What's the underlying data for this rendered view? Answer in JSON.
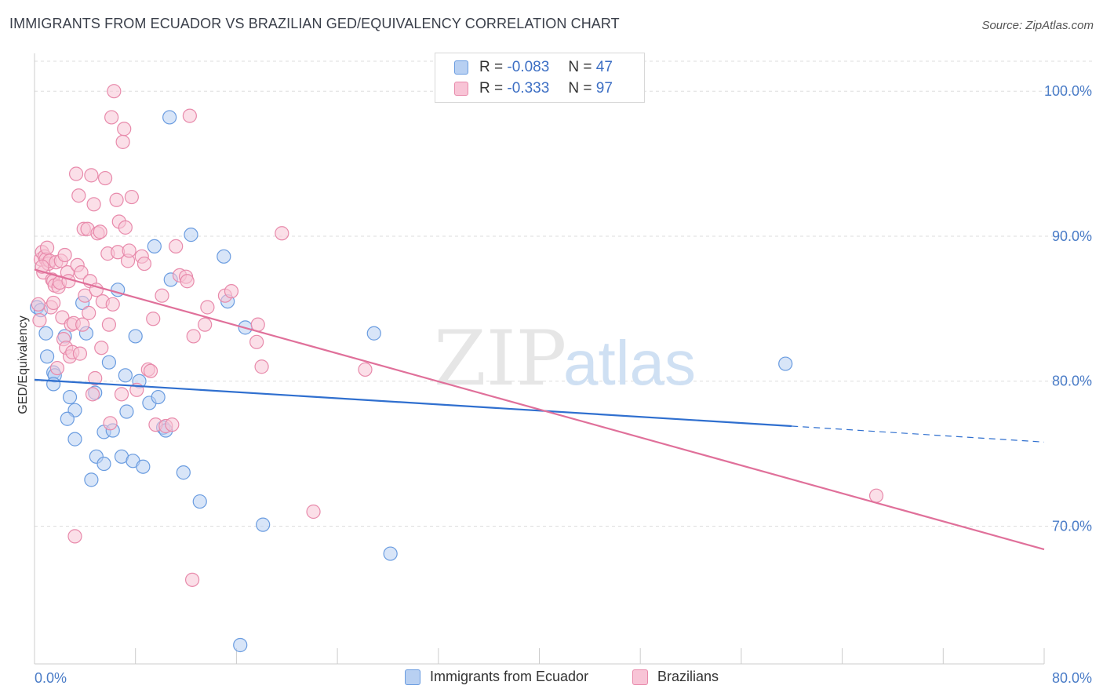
{
  "header": {
    "title": "IMMIGRANTS FROM ECUADOR VS BRAZILIAN GED/EQUIVALENCY CORRELATION CHART",
    "source": "Source: ZipAtlas.com"
  },
  "watermark": {
    "zip": "ZIP",
    "atlas": "atlas"
  },
  "legend_top": {
    "r_label": "R =",
    "n_label": "N =",
    "rows": [
      {
        "r": "-0.083",
        "n": "47"
      },
      {
        "r": "-0.333",
        "n": "97"
      }
    ]
  },
  "colors": {
    "blue_fill": "#b8d0f2",
    "blue_stroke": "#6a9ce0",
    "blue_line": "#2f6fcf",
    "pink_fill": "#f8c4d6",
    "pink_stroke": "#e88aab",
    "pink_line": "#e0709a",
    "tick_label": "#4a7cc7",
    "grid": "#dddddd"
  },
  "chart_data": {
    "type": "scatter",
    "title": "IMMIGRANTS FROM ECUADOR VS BRAZILIAN GED/EQUIVALENCY CORRELATION CHART",
    "xlabel": "",
    "ylabel": "GED/Equivalency",
    "xlim": [
      0,
      80
    ],
    "ylim": [
      60.5,
      102.5
    ],
    "x_tick_labels": [
      "0.0%",
      "80.0%"
    ],
    "y_ticks": [
      70,
      80,
      90,
      100
    ],
    "y_tick_labels": [
      "70.0%",
      "80.0%",
      "90.0%",
      "100.0%"
    ],
    "grid": true,
    "legend_position": "bottom",
    "series": [
      {
        "name": "Immigrants from Ecuador",
        "color": "blue",
        "r": -0.083,
        "n": 47,
        "trend": {
          "x0": 0.0,
          "y0": 80.1,
          "x1": 60.0,
          "y1": 76.9,
          "dash_to_x": 80.0,
          "dash_to_y": 75.8
        },
        "points": [
          [
            0.2,
            85.1
          ],
          [
            0.5,
            84.9
          ],
          [
            0.9,
            83.3
          ],
          [
            1.0,
            81.7
          ],
          [
            1.5,
            80.6
          ],
          [
            1.6,
            80.4
          ],
          [
            1.5,
            79.8
          ],
          [
            2.4,
            83.1
          ],
          [
            2.8,
            78.9
          ],
          [
            3.2,
            78.0
          ],
          [
            2.6,
            77.4
          ],
          [
            3.2,
            76.0
          ],
          [
            3.8,
            85.4
          ],
          [
            4.1,
            83.3
          ],
          [
            4.8,
            79.2
          ],
          [
            5.5,
            76.5
          ],
          [
            4.9,
            74.8
          ],
          [
            4.5,
            73.2
          ],
          [
            5.5,
            74.3
          ],
          [
            5.9,
            81.3
          ],
          [
            6.2,
            76.6
          ],
          [
            6.6,
            86.3
          ],
          [
            6.9,
            74.8
          ],
          [
            7.2,
            80.4
          ],
          [
            7.3,
            77.9
          ],
          [
            7.8,
            74.5
          ],
          [
            8.0,
            83.1
          ],
          [
            8.3,
            80.0
          ],
          [
            8.6,
            74.1
          ],
          [
            9.1,
            78.5
          ],
          [
            9.5,
            89.3
          ],
          [
            9.8,
            78.9
          ],
          [
            10.2,
            76.8
          ],
          [
            10.4,
            76.6
          ],
          [
            10.8,
            87.0
          ],
          [
            10.7,
            98.2
          ],
          [
            11.8,
            73.7
          ],
          [
            12.4,
            90.1
          ],
          [
            13.1,
            71.7
          ],
          [
            15.0,
            88.6
          ],
          [
            15.3,
            85.5
          ],
          [
            16.3,
            61.8
          ],
          [
            16.7,
            83.7
          ],
          [
            18.1,
            70.1
          ],
          [
            26.9,
            83.3
          ],
          [
            28.2,
            68.1
          ],
          [
            59.5,
            81.2
          ]
        ]
      },
      {
        "name": "Brazilians",
        "color": "pink",
        "r": -0.333,
        "n": 97,
        "trend": {
          "x0": 0.0,
          "y0": 87.7,
          "x1": 80.0,
          "y1": 68.4
        },
        "points": [
          [
            0.5,
            88.4
          ],
          [
            0.6,
            88.9
          ],
          [
            0.7,
            87.5
          ],
          [
            0.8,
            88.6
          ],
          [
            0.9,
            88.4
          ],
          [
            1.0,
            89.2
          ],
          [
            1.1,
            88.1
          ],
          [
            1.2,
            88.3
          ],
          [
            1.3,
            85.1
          ],
          [
            1.4,
            87.0
          ],
          [
            1.5,
            85.4
          ],
          [
            1.5,
            86.9
          ],
          [
            1.6,
            86.6
          ],
          [
            1.7,
            88.2
          ],
          [
            1.8,
            80.9
          ],
          [
            1.9,
            86.5
          ],
          [
            2.0,
            86.8
          ],
          [
            2.1,
            88.3
          ],
          [
            2.2,
            84.4
          ],
          [
            2.3,
            82.9
          ],
          [
            2.4,
            88.7
          ],
          [
            2.5,
            82.3
          ],
          [
            2.6,
            87.5
          ],
          [
            2.7,
            86.9
          ],
          [
            2.8,
            81.7
          ],
          [
            2.9,
            83.9
          ],
          [
            3.0,
            82.0
          ],
          [
            3.1,
            84.0
          ],
          [
            3.2,
            69.3
          ],
          [
            3.3,
            94.3
          ],
          [
            3.4,
            88.0
          ],
          [
            3.5,
            92.8
          ],
          [
            3.6,
            81.9
          ],
          [
            3.7,
            87.5
          ],
          [
            3.8,
            83.9
          ],
          [
            3.9,
            90.5
          ],
          [
            4.0,
            85.9
          ],
          [
            4.2,
            90.5
          ],
          [
            4.3,
            84.7
          ],
          [
            4.4,
            86.9
          ],
          [
            4.5,
            94.2
          ],
          [
            4.6,
            79.1
          ],
          [
            4.7,
            92.2
          ],
          [
            4.8,
            80.2
          ],
          [
            4.9,
            86.3
          ],
          [
            5.0,
            90.2
          ],
          [
            5.2,
            90.3
          ],
          [
            5.3,
            82.3
          ],
          [
            5.4,
            85.5
          ],
          [
            5.6,
            94.0
          ],
          [
            5.8,
            88.8
          ],
          [
            5.9,
            83.9
          ],
          [
            6.0,
            77.1
          ],
          [
            6.1,
            98.2
          ],
          [
            6.2,
            85.3
          ],
          [
            6.3,
            100.0
          ],
          [
            6.5,
            92.5
          ],
          [
            6.6,
            88.9
          ],
          [
            6.7,
            91.0
          ],
          [
            6.9,
            79.1
          ],
          [
            7.0,
            96.5
          ],
          [
            7.1,
            97.4
          ],
          [
            7.2,
            90.6
          ],
          [
            7.4,
            88.3
          ],
          [
            7.5,
            89.0
          ],
          [
            7.7,
            92.7
          ],
          [
            8.1,
            79.4
          ],
          [
            8.5,
            88.6
          ],
          [
            8.7,
            88.1
          ],
          [
            9.0,
            80.8
          ],
          [
            9.2,
            80.7
          ],
          [
            9.4,
            84.3
          ],
          [
            9.6,
            77.0
          ],
          [
            10.1,
            85.9
          ],
          [
            10.4,
            76.9
          ],
          [
            10.9,
            77.0
          ],
          [
            11.2,
            89.3
          ],
          [
            11.5,
            87.3
          ],
          [
            12.0,
            87.2
          ],
          [
            12.1,
            86.9
          ],
          [
            12.3,
            98.3
          ],
          [
            12.5,
            66.3
          ],
          [
            12.6,
            83.1
          ],
          [
            13.5,
            83.9
          ],
          [
            13.7,
            85.1
          ],
          [
            15.1,
            85.9
          ],
          [
            15.6,
            86.2
          ],
          [
            17.7,
            83.9
          ],
          [
            17.6,
            82.7
          ],
          [
            18.0,
            81.0
          ],
          [
            19.6,
            90.2
          ],
          [
            22.1,
            71.0
          ],
          [
            26.2,
            80.8
          ],
          [
            66.7,
            72.1
          ],
          [
            0.4,
            84.2
          ],
          [
            0.3,
            85.3
          ],
          [
            0.6,
            87.9
          ]
        ]
      }
    ]
  },
  "legend_bottom": {
    "items": [
      {
        "label": "Immigrants from Ecuador"
      },
      {
        "label": "Brazilians"
      }
    ]
  }
}
